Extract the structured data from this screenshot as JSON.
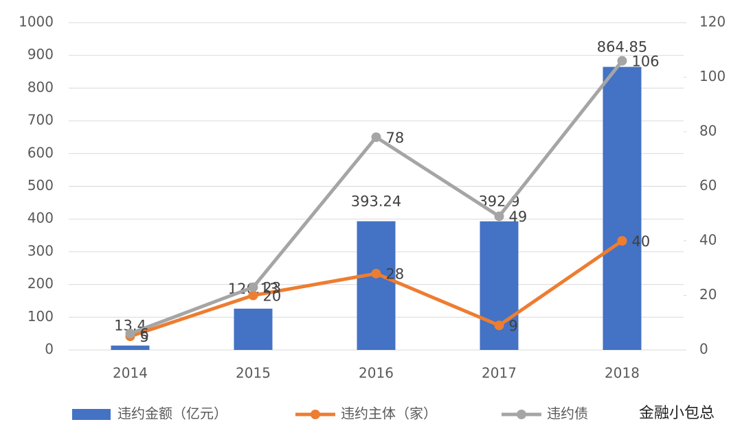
{
  "chart_data": {
    "type": "bar-line",
    "categories": [
      "2014",
      "2015",
      "2016",
      "2017",
      "2018"
    ],
    "ylim": [
      0,
      1000
    ],
    "yticks": [
      0,
      100,
      200,
      300,
      400,
      500,
      600,
      700,
      800,
      900,
      1000
    ],
    "y2lim": [
      0,
      120
    ],
    "y2ticks": [
      0,
      20,
      40,
      60,
      80,
      100,
      120
    ],
    "grid": true,
    "legend": "bottom",
    "series": [
      {
        "name": "违约金额（亿元）",
        "type": "bar",
        "color": "#4472c4",
        "values": [
          13.4,
          126.13,
          393.24,
          392.9,
          864.85
        ]
      },
      {
        "name": "违约主体（家）",
        "type": "line",
        "axis": "y2",
        "color": "#ed7d31",
        "values": [
          5,
          20,
          28,
          9,
          40
        ]
      },
      {
        "name": "违约债",
        "type": "line",
        "axis": "y2",
        "color": "#a5a5a5",
        "values": [
          6,
          23,
          78,
          49,
          106
        ]
      }
    ],
    "watermark": "金融小包总"
  }
}
